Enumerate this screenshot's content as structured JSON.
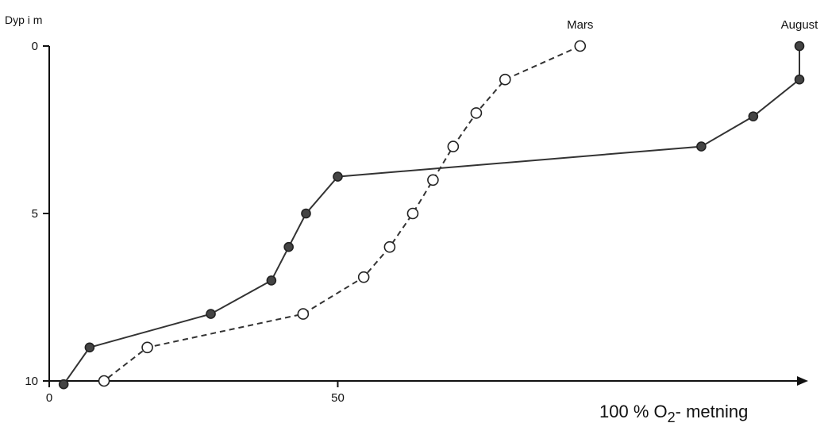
{
  "chart_data": {
    "type": "line",
    "ylabel": "Dyp i m",
    "xlabel": "100 % O",
    "xlabel_sub": "2",
    "xlabel_suffix": "- metning",
    "x_ticks": [
      "0",
      "50"
    ],
    "y_ticks": [
      "0",
      "5",
      "10"
    ],
    "xlim": [
      0,
      130
    ],
    "ylim": [
      0,
      10
    ],
    "y_inverted": true,
    "grid": false,
    "series": [
      {
        "name": "August",
        "style": "solid",
        "marker": "filled-circle",
        "color": "#333333",
        "points": [
          {
            "x": 130,
            "y": 0
          },
          {
            "x": 130,
            "y": 1.0
          },
          {
            "x": 122,
            "y": 2.1
          },
          {
            "x": 113,
            "y": 3.0
          },
          {
            "x": 50,
            "y": 3.9
          },
          {
            "x": 44.5,
            "y": 5.0
          },
          {
            "x": 41.5,
            "y": 6.0
          },
          {
            "x": 38.5,
            "y": 7.0
          },
          {
            "x": 28,
            "y": 8.0
          },
          {
            "x": 7,
            "y": 9.0
          },
          {
            "x": 2.5,
            "y": 10.1
          }
        ]
      },
      {
        "name": "Mars",
        "style": "dashed",
        "marker": "open-circle",
        "color": "#333333",
        "points": [
          {
            "x": 92,
            "y": 0
          },
          {
            "x": 79,
            "y": 1.0
          },
          {
            "x": 74,
            "y": 2.0
          },
          {
            "x": 70,
            "y": 3.0
          },
          {
            "x": 66.5,
            "y": 4.0
          },
          {
            "x": 63,
            "y": 5.0
          },
          {
            "x": 59,
            "y": 6.0
          },
          {
            "x": 54.5,
            "y": 6.9
          },
          {
            "x": 44,
            "y": 8.0
          },
          {
            "x": 17,
            "y": 9.0
          },
          {
            "x": 9.5,
            "y": 10.0
          }
        ]
      }
    ]
  }
}
